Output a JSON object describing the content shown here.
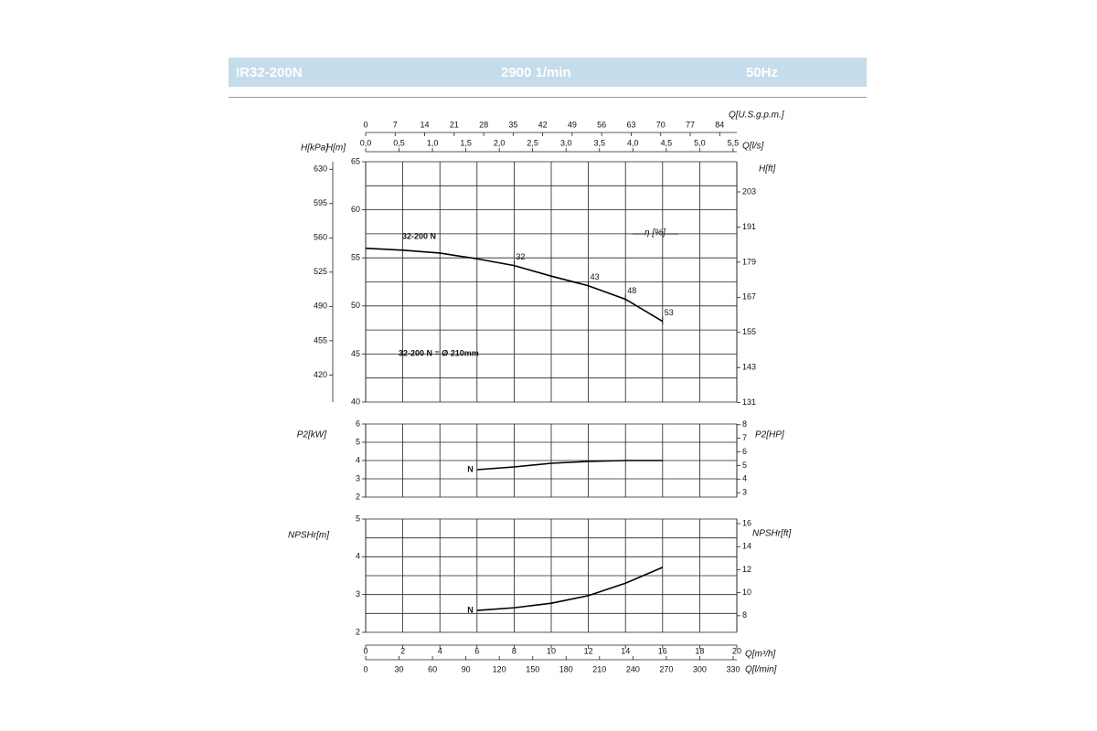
{
  "header": {
    "model": "IR32-200N",
    "speed": "2900 1/min",
    "frequency": "50Hz"
  },
  "chart_data": [
    {
      "type": "line",
      "ylabel": "H[m]",
      "ylim": [
        40,
        65
      ],
      "yticks": [
        40,
        45,
        50,
        55,
        60,
        65
      ],
      "ygrid": [
        40,
        42.5,
        45,
        47.5,
        50,
        52.5,
        55,
        57.5,
        60,
        62.5,
        65
      ],
      "y2label": "H[ft]",
      "y2lim": [
        131.2,
        213.3
      ],
      "y2ticks": [
        131,
        143,
        155,
        167,
        179,
        191,
        203
      ],
      "y3label": "H[kPa]",
      "y3lim": [
        392.4,
        637.7
      ],
      "y3ticks": [
        420,
        455,
        490,
        525,
        560,
        595,
        630
      ],
      "xlim": [
        0,
        20
      ],
      "xticks": [
        0,
        2,
        4,
        6,
        8,
        10,
        12,
        14,
        16,
        18,
        20
      ],
      "x2label": "Q[l/s]",
      "x2lim": [
        0,
        5.556
      ],
      "x2ticks": [
        {
          "value": 0,
          "label": "0,0"
        },
        {
          "value": 0.5,
          "label": "0,5"
        },
        {
          "value": 1,
          "label": "1,0"
        },
        {
          "value": 1.5,
          "label": "1,5"
        },
        {
          "value": 2,
          "label": "2,0"
        },
        {
          "value": 2.5,
          "label": "2,5"
        },
        {
          "value": 3,
          "label": "3,0"
        },
        {
          "value": 3.5,
          "label": "3,5"
        },
        {
          "value": 4,
          "label": "4,0"
        },
        {
          "value": 4.5,
          "label": "4,5"
        },
        {
          "value": 5,
          "label": "5,0"
        },
        {
          "value": 5.5,
          "label": "5,5"
        }
      ],
      "x3label": "Q[U.S.g.p.m.]",
      "x3lim": [
        0,
        88.06
      ],
      "x3ticks": [
        0,
        7,
        14,
        21,
        28,
        35,
        42,
        49,
        56,
        63,
        70,
        77,
        84
      ],
      "series": [
        {
          "name": "32-200 N",
          "color": "#000000",
          "x": [
            0,
            2,
            4,
            6,
            8,
            10,
            12,
            14,
            16
          ],
          "values": [
            56,
            55.8,
            55.5,
            54.9,
            54.2,
            53.1,
            52.1,
            50.7,
            48.4
          ]
        }
      ],
      "efficiency": {
        "label": "η [%]",
        "x": [
          8,
          12,
          14,
          16
        ],
        "values": [
          32,
          43,
          48,
          53
        ]
      },
      "annotation": "32-200 N = Ø 210mm"
    },
    {
      "type": "line",
      "ylabel": "P2[kW]",
      "ylim": [
        2,
        6
      ],
      "yticks": [
        2,
        3,
        4,
        5,
        6
      ],
      "ygrid": [
        2,
        3,
        4,
        5,
        6
      ],
      "y2label": "P2[HP]",
      "y2lim": [
        2.68,
        8.05
      ],
      "y2ticks": [
        3,
        4,
        5,
        6,
        7,
        8
      ],
      "xlim": [
        0,
        20
      ],
      "xticks": [
        0,
        2,
        4,
        6,
        8,
        10,
        12,
        14,
        16,
        18,
        20
      ],
      "series": [
        {
          "name": "N",
          "color": "#000000",
          "x": [
            6,
            8,
            10,
            12,
            14,
            16
          ],
          "values": [
            3.5,
            3.65,
            3.85,
            3.95,
            4.0,
            4.0
          ]
        }
      ]
    },
    {
      "type": "line",
      "ylabel": "NPSHr[m]",
      "ylim": [
        2,
        5
      ],
      "yticks": [
        2,
        3,
        4,
        5
      ],
      "ygrid": [
        2,
        2.5,
        3,
        3.5,
        4,
        4.5,
        5
      ],
      "y2label": "NPSHr[ft]",
      "y2lim": [
        6.56,
        16.4
      ],
      "y2ticks": [
        8,
        10,
        12,
        14,
        16
      ],
      "xlabel": "Q[m³/h]",
      "xlim": [
        0,
        20
      ],
      "xticks": [
        0,
        2,
        4,
        6,
        8,
        10,
        12,
        14,
        16,
        18,
        20
      ],
      "x2label": "Q[l/min]",
      "x2lim": [
        0,
        333.3
      ],
      "x2ticks": [
        0,
        30,
        60,
        90,
        120,
        150,
        180,
        210,
        240,
        270,
        300,
        330
      ],
      "series": [
        {
          "name": "N",
          "color": "#000000",
          "x": [
            6,
            8,
            10,
            12,
            14,
            16
          ],
          "values": [
            2.58,
            2.65,
            2.77,
            2.97,
            3.3,
            3.72
          ]
        }
      ]
    }
  ]
}
